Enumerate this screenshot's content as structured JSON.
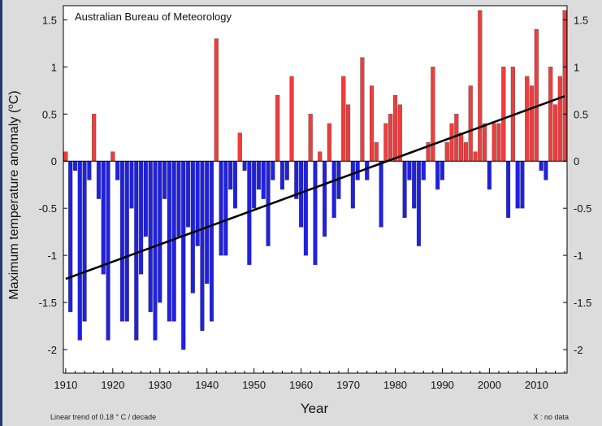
{
  "chart_data": {
    "type": "bar",
    "annotation": "Australian Bureau of Meteorology",
    "xlabel": "Year",
    "ylabel": "Maximum temperature anomaly (°C)",
    "ylabel_main": "Maximum temperature anomaly (",
    "ylabel_degree": "o",
    "ylabel_unit": "C)",
    "xlim": [
      1909.5,
      2016.5
    ],
    "ylim": [
      -2.25,
      1.65
    ],
    "x_ticks": [
      1910,
      1920,
      1930,
      1940,
      1950,
      1960,
      1970,
      1980,
      1990,
      2000,
      2010
    ],
    "y_ticks": [
      -2,
      -1.5,
      -1,
      -0.5,
      0,
      0.5,
      1,
      1.5
    ],
    "grid": false,
    "colors": {
      "positive": "#ef3c3c",
      "negative": "#2020e0",
      "trend": "#000000",
      "background": "#dcdcdc",
      "plot": "#ffffff"
    },
    "x": [
      1910,
      1911,
      1912,
      1913,
      1914,
      1915,
      1916,
      1917,
      1918,
      1919,
      1920,
      1921,
      1922,
      1923,
      1924,
      1925,
      1926,
      1927,
      1928,
      1929,
      1930,
      1931,
      1932,
      1933,
      1934,
      1935,
      1936,
      1937,
      1938,
      1939,
      1940,
      1941,
      1942,
      1943,
      1944,
      1945,
      1946,
      1947,
      1948,
      1949,
      1950,
      1951,
      1952,
      1953,
      1954,
      1955,
      1956,
      1957,
      1958,
      1959,
      1960,
      1961,
      1962,
      1963,
      1964,
      1965,
      1966,
      1967,
      1968,
      1969,
      1970,
      1971,
      1972,
      1973,
      1974,
      1975,
      1976,
      1977,
      1978,
      1979,
      1980,
      1981,
      1982,
      1983,
      1984,
      1985,
      1986,
      1987,
      1988,
      1989,
      1990,
      1991,
      1992,
      1993,
      1994,
      1995,
      1996,
      1997,
      1998,
      1999,
      2000,
      2001,
      2002,
      2003,
      2004,
      2005,
      2006,
      2007,
      2008,
      2009,
      2010,
      2011,
      2012,
      2013,
      2014,
      2015,
      2016
    ],
    "values": [
      0.1,
      -1.6,
      -0.1,
      -1.9,
      -1.7,
      -0.2,
      0.5,
      -0.4,
      -1.2,
      -1.9,
      0.1,
      -0.2,
      -1.7,
      -1.7,
      -0.5,
      -1.9,
      -1.2,
      -0.8,
      -1.6,
      -1.9,
      -1.5,
      -0.4,
      -1.7,
      -1.7,
      -0.8,
      -2.0,
      -0.7,
      -1.4,
      -0.9,
      -1.8,
      -1.3,
      -1.7,
      1.3,
      -1.0,
      -1.0,
      -0.3,
      -0.5,
      0.3,
      -0.1,
      -1.1,
      -0.5,
      -0.3,
      -0.4,
      -0.9,
      -0.2,
      0.7,
      -0.3,
      -0.2,
      0.9,
      -0.4,
      -0.7,
      -1.0,
      0.5,
      -1.1,
      0.1,
      -0.8,
      0.4,
      -0.6,
      -0.4,
      0.9,
      0.6,
      -0.5,
      -0.2,
      1.1,
      -0.2,
      0.8,
      0.2,
      -0.7,
      0.4,
      0.5,
      0.7,
      0.6,
      -0.6,
      -0.2,
      -0.5,
      -0.9,
      -0.2,
      0.2,
      1.0,
      -0.3,
      -0.2,
      0.2,
      0.4,
      0.5,
      0.3,
      0.2,
      0.8,
      0.1,
      1.6,
      0.4,
      -0.3,
      0.4,
      0.4,
      1.0,
      -0.6,
      1.0,
      -0.5,
      -0.5,
      0.9,
      0.8,
      1.4,
      -0.1,
      -0.2,
      1.0,
      0.6,
      0.9,
      1.6
    ],
    "trend": {
      "label": "Linear trend",
      "rate_per_decade": 0.18,
      "start": [
        1910,
        -1.25
      ],
      "end": [
        2016,
        0.69
      ]
    },
    "footer_left": "Linear  trend of 0.18  ° C / decade",
    "footer_right": "X : no  data"
  }
}
